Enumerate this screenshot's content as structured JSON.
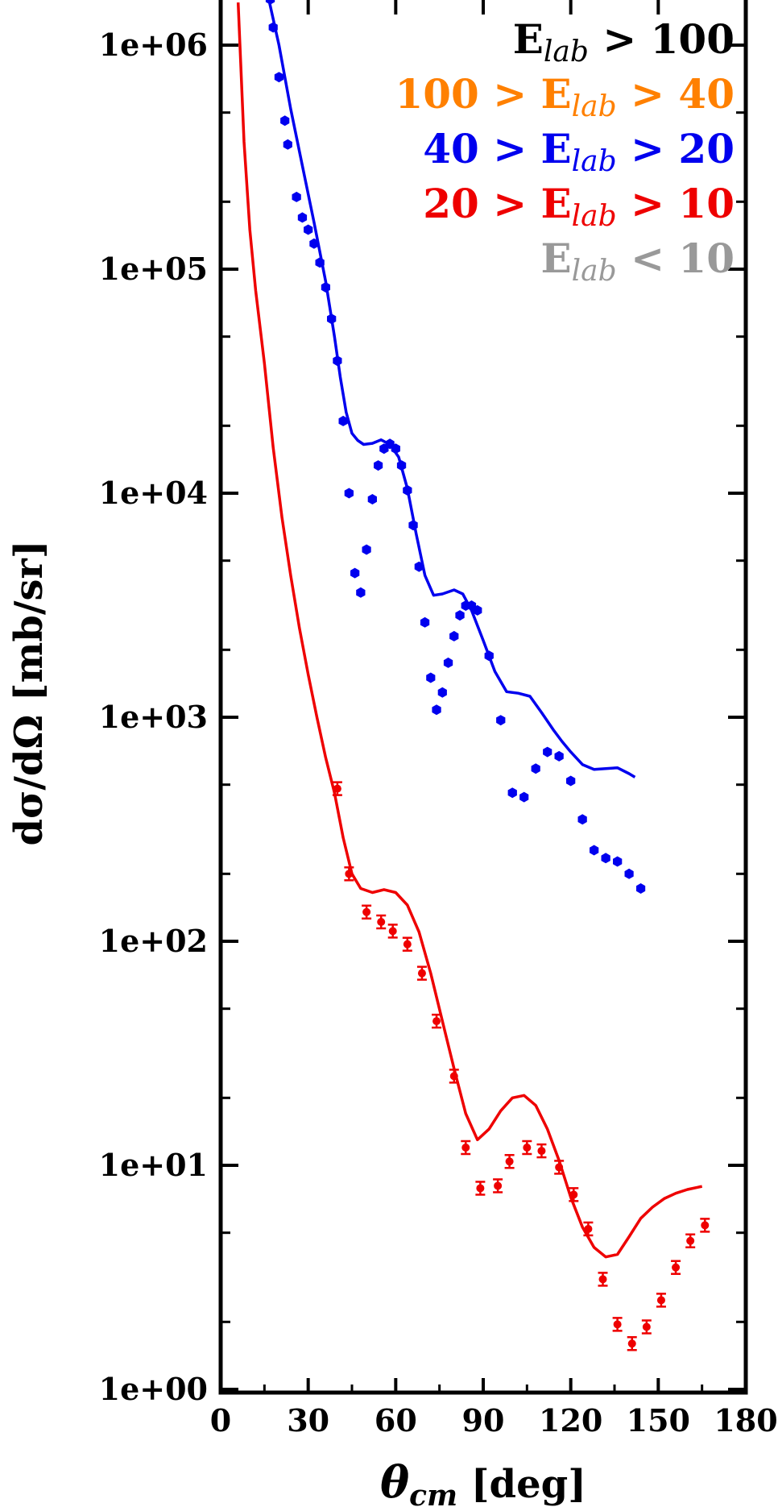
{
  "chart_data": {
    "type": "scatter",
    "xlabel": {
      "main": "θ",
      "sub": "cm",
      "rest": " [deg]"
    },
    "ylabel": {
      "main": "dσ/dΩ [mb/sr]"
    },
    "xlim": [
      0,
      180
    ],
    "ylim_log10": [
      0,
      6.2
    ],
    "yscale": "log",
    "x_ticks": [
      "0",
      "30",
      "60",
      "90",
      "120",
      "150",
      "180"
    ],
    "x_tick_values": [
      0,
      30,
      60,
      90,
      120,
      150,
      180
    ],
    "y_ticks": [
      "1e+00",
      "1e+01",
      "1e+02",
      "1e+03",
      "1e+04",
      "1e+05",
      "1e+06"
    ],
    "y_tick_values": [
      0,
      1,
      2,
      3,
      4,
      5,
      6
    ],
    "legend": {
      "placement": "top-right",
      "entries": [
        {
          "pre": "E",
          "sub": "lab",
          "post": " > 100",
          "color": "#000000"
        },
        {
          "pre": "100 > E",
          "sub": "lab",
          "post": " > 40",
          "color": "#ff8000"
        },
        {
          "pre": "40 > E",
          "sub": "lab",
          "post": " > 20",
          "color": "#0000ee"
        },
        {
          "pre": "20 > E",
          "sub": "lab",
          "post": " > 10",
          "color": "#ee0000"
        },
        {
          "pre": "E",
          "sub": "lab",
          "post": " < 10",
          "color": "#999999"
        }
      ]
    },
    "series": [
      {
        "color": "#0000ee",
        "marker": "hexagon",
        "points": [
          [
            17,
            1600000.0
          ],
          [
            18,
            1200000.0
          ],
          [
            20,
            720000.0
          ],
          [
            22,
            460000.0
          ],
          [
            23,
            360000.0
          ],
          [
            26,
            210000.0
          ],
          [
            28,
            170000.0
          ],
          [
            30,
            150000.0
          ],
          [
            32,
            130000.0
          ],
          [
            34,
            107000.0
          ],
          [
            36,
            83000.0
          ],
          [
            38,
            60000.0
          ],
          [
            40,
            39000.0
          ],
          [
            42,
            21000.0
          ],
          [
            44,
            10000.0
          ],
          [
            46,
            4400.0
          ],
          [
            48,
            3600.0
          ],
          [
            50,
            5600.0
          ],
          [
            52,
            9400.0
          ],
          [
            54,
            13300.0
          ],
          [
            56,
            15800.0
          ],
          [
            58,
            16600.0
          ],
          [
            60,
            15800.0
          ],
          [
            62,
            13300.0
          ],
          [
            64,
            10300.0
          ],
          [
            66,
            7200.0
          ],
          [
            68,
            4700.0
          ],
          [
            70,
            2650.0
          ],
          [
            72,
            1500.0
          ],
          [
            74,
            1080.0
          ],
          [
            76,
            1290.0
          ],
          [
            78,
            1750.0
          ],
          [
            80,
            2300.0
          ],
          [
            82,
            2850.0
          ],
          [
            84,
            3150.0
          ],
          [
            86,
            3150.0
          ],
          [
            88,
            3000.0
          ],
          [
            92,
            1880.0
          ],
          [
            96,
            970
          ],
          [
            100,
            460
          ],
          [
            104,
            440
          ],
          [
            108,
            590
          ],
          [
            112,
            700
          ],
          [
            116,
            670
          ],
          [
            120,
            520
          ],
          [
            124,
            350
          ],
          [
            128,
            255
          ],
          [
            132,
            235
          ],
          [
            136,
            227
          ],
          [
            140,
            200
          ],
          [
            144,
            172
          ]
        ],
        "curve": [
          [
            16.5,
            1600000.0
          ],
          [
            20,
            1000000.0
          ],
          [
            24,
            520000.0
          ],
          [
            28,
            290000.0
          ],
          [
            32,
            162000.0
          ],
          [
            36,
            88000.0
          ],
          [
            39,
            50000.0
          ],
          [
            41,
            33000.0
          ],
          [
            43,
            23000.0
          ],
          [
            45,
            18500.0
          ],
          [
            47,
            17200.0
          ],
          [
            49,
            16500.0
          ],
          [
            52,
            16700.0
          ],
          [
            55,
            17300.0
          ],
          [
            58,
            16500.0
          ],
          [
            61,
            14500.0
          ],
          [
            64,
            10500.0
          ],
          [
            67,
            6600.0
          ],
          [
            70,
            4300.0
          ],
          [
            73,
            3500.0
          ],
          [
            76,
            3550.0
          ],
          [
            80,
            3700.0
          ],
          [
            83,
            3550.0
          ],
          [
            86,
            3000.0
          ],
          [
            90,
            2200.0
          ],
          [
            94,
            1600.0
          ],
          [
            98,
            1300.0
          ],
          [
            102,
            1280.0
          ],
          [
            106,
            1240.0
          ],
          [
            110,
            1050.0
          ],
          [
            114,
            880
          ],
          [
            117,
            780
          ],
          [
            120,
            700
          ],
          [
            124,
            615
          ],
          [
            128,
            585
          ],
          [
            132,
            590
          ],
          [
            136,
            595
          ],
          [
            140,
            560
          ],
          [
            142,
            540
          ]
        ]
      },
      {
        "color": "#ee0000",
        "marker": "circle-errorbar",
        "points": [
          [
            40,
            480
          ],
          [
            44,
            200
          ],
          [
            50,
            135
          ],
          [
            55,
            122
          ],
          [
            59,
            111
          ],
          [
            64,
            97
          ],
          [
            69,
            72
          ],
          [
            74,
            44
          ],
          [
            80,
            25
          ],
          [
            84,
            12
          ],
          [
            89,
            7.9
          ],
          [
            95,
            8.1
          ],
          [
            99,
            10.4
          ],
          [
            105,
            12
          ],
          [
            110,
            11.6
          ],
          [
            116,
            9.8
          ],
          [
            121,
            7.4
          ],
          [
            126,
            5.2
          ],
          [
            131,
            3.1
          ],
          [
            136,
            1.95
          ],
          [
            141,
            1.6
          ],
          [
            146,
            1.9
          ],
          [
            151,
            2.5
          ],
          [
            156,
            3.5
          ],
          [
            161,
            4.6
          ],
          [
            166,
            5.4
          ]
        ],
        "curve": [
          [
            6,
            1550000.0
          ],
          [
            8,
            370000.0
          ],
          [
            10,
            150000.0
          ],
          [
            12,
            80000.0
          ],
          [
            15,
            38000.0
          ],
          [
            18,
            16000.0
          ],
          [
            21,
            7800.0
          ],
          [
            24,
            4300.0
          ],
          [
            27,
            2500.0
          ],
          [
            30,
            1550.0
          ],
          [
            33,
            1000.0
          ],
          [
            36,
            660
          ],
          [
            39,
            460
          ],
          [
            42,
            290
          ],
          [
            45,
            200
          ],
          [
            48,
            172
          ],
          [
            52,
            165
          ],
          [
            56,
            170
          ],
          [
            60,
            165
          ],
          [
            64,
            145
          ],
          [
            68,
            110
          ],
          [
            72,
            72
          ],
          [
            76,
            44
          ],
          [
            80,
            27
          ],
          [
            84,
            17
          ],
          [
            88,
            13
          ],
          [
            92,
            14.5
          ],
          [
            96,
            17.5
          ],
          [
            100,
            20
          ],
          [
            104,
            20.5
          ],
          [
            108,
            18.5
          ],
          [
            112,
            14.5
          ],
          [
            116,
            10.5
          ],
          [
            120,
            7.2
          ],
          [
            124,
            5.3
          ],
          [
            128,
            4.3
          ],
          [
            132,
            3.9
          ],
          [
            136,
            4.0
          ],
          [
            140,
            4.8
          ],
          [
            144,
            5.8
          ],
          [
            148,
            6.5
          ],
          [
            152,
            7.1
          ],
          [
            156,
            7.5
          ],
          [
            160,
            7.8
          ],
          [
            164,
            8.0
          ],
          [
            165,
            8.05
          ]
        ]
      }
    ]
  }
}
